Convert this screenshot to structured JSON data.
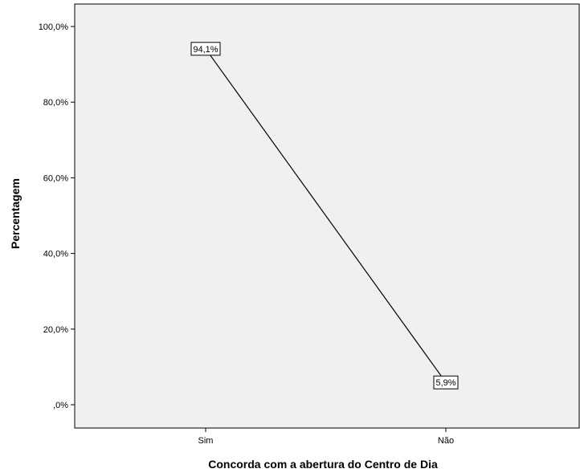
{
  "chart_data": {
    "type": "line",
    "categories": [
      "Sim",
      "Não"
    ],
    "values": [
      94.1,
      5.9
    ],
    "data_labels": [
      "94,1%",
      "5,9%"
    ],
    "xlabel": "Concorda com a abertura do Centro de Dia",
    "ylabel": "Percentagem",
    "ylim": [
      0,
      100
    ],
    "yticks": [
      0,
      20,
      40,
      60,
      80,
      100
    ],
    "ytick_labels": [
      ",0%",
      "20,0%",
      "40,0%",
      "60,0%",
      "80,0%",
      "100,0%"
    ],
    "grid": false,
    "legend": "none",
    "colors": {
      "plot_background": "#f0f0f0",
      "line": "#000000",
      "axis": "#000000"
    }
  }
}
